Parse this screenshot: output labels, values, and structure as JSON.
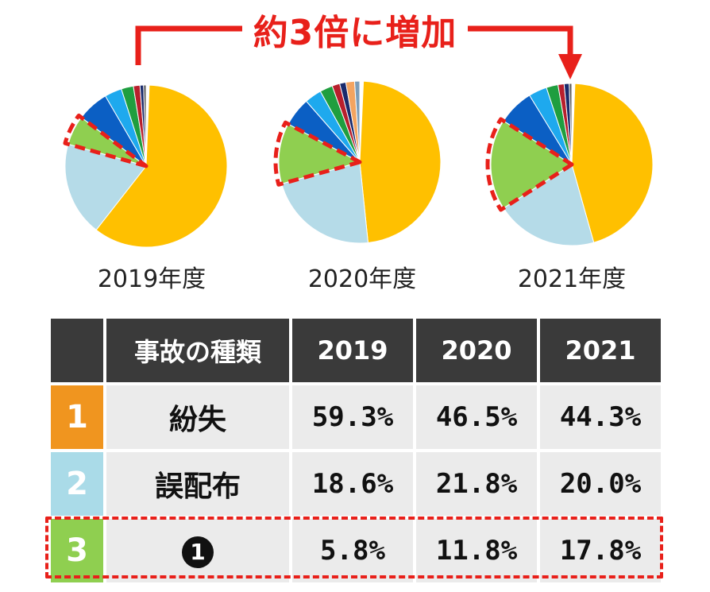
{
  "banner": {
    "text": "約3倍に増加",
    "color": "#e8201a"
  },
  "chart_data": {
    "type": "pie",
    "charts": [
      {
        "label": "2019年度",
        "start_gap": 2.2,
        "highlight_index": 2,
        "slices": [
          {
            "value": 59.3,
            "color": "#ffc000"
          },
          {
            "value": 18.6,
            "color": "#b5dbe8"
          },
          {
            "value": 5.8,
            "color": "#8fcf50"
          },
          {
            "value": 6.3,
            "color": "#0b5fc4"
          },
          {
            "value": 3.4,
            "color": "#1ea9ee"
          },
          {
            "value": 2.4,
            "color": "#1f9e3f"
          },
          {
            "value": 1.3,
            "color": "#b81f2c"
          },
          {
            "value": 0.7,
            "color": "#1a2a6c"
          },
          {
            "value": 0.5,
            "color": "#5a5a5a"
          }
        ]
      },
      {
        "label": "2020年度",
        "start_gap": 2.6,
        "highlight_index": 2,
        "slices": [
          {
            "value": 46.5,
            "color": "#ffc000"
          },
          {
            "value": 21.8,
            "color": "#b5dbe8"
          },
          {
            "value": 11.8,
            "color": "#8fcf50"
          },
          {
            "value": 5.6,
            "color": "#0b5fc4"
          },
          {
            "value": 3.3,
            "color": "#1ea9ee"
          },
          {
            "value": 2.5,
            "color": "#1f9e3f"
          },
          {
            "value": 1.5,
            "color": "#b81f2c"
          },
          {
            "value": 1.2,
            "color": "#1a2a6c"
          },
          {
            "value": 1.7,
            "color": "#f4a460"
          },
          {
            "value": 1.0,
            "color": "#7d9db8"
          }
        ]
      },
      {
        "label": "2021年度",
        "start_gap": 2.2,
        "highlight_index": 2,
        "slices": [
          {
            "value": 44.3,
            "color": "#ffc000"
          },
          {
            "value": 20.0,
            "color": "#b5dbe8"
          },
          {
            "value": 17.8,
            "color": "#8fcf50"
          },
          {
            "value": 7.1,
            "color": "#0b5fc4"
          },
          {
            "value": 3.6,
            "color": "#1ea9ee"
          },
          {
            "value": 2.3,
            "color": "#1f9e3f"
          },
          {
            "value": 1.2,
            "color": "#b81f2c"
          },
          {
            "value": 1.0,
            "color": "#1a2a6c"
          },
          {
            "value": 0.5,
            "color": "#5a5a5a"
          }
        ]
      }
    ]
  },
  "table": {
    "headers": [
      "",
      "事故の種類",
      "2019",
      "2020",
      "2021"
    ],
    "rows": [
      {
        "rank": "1",
        "rank_color": "#f0951f",
        "name": "紛失",
        "v2019": "59.3%",
        "v2020": "46.5%",
        "v2021": "44.3%"
      },
      {
        "rank": "2",
        "rank_color": "#aadbe8",
        "name": "誤配布",
        "v2019": "18.6%",
        "v2020": "21.8%",
        "v2021": "20.0%"
      },
      {
        "rank": "3",
        "rank_color": "#8fcf50",
        "name": "❶",
        "v2019": "5.8%",
        "v2020": "11.8%",
        "v2021": "17.8%"
      }
    ]
  }
}
